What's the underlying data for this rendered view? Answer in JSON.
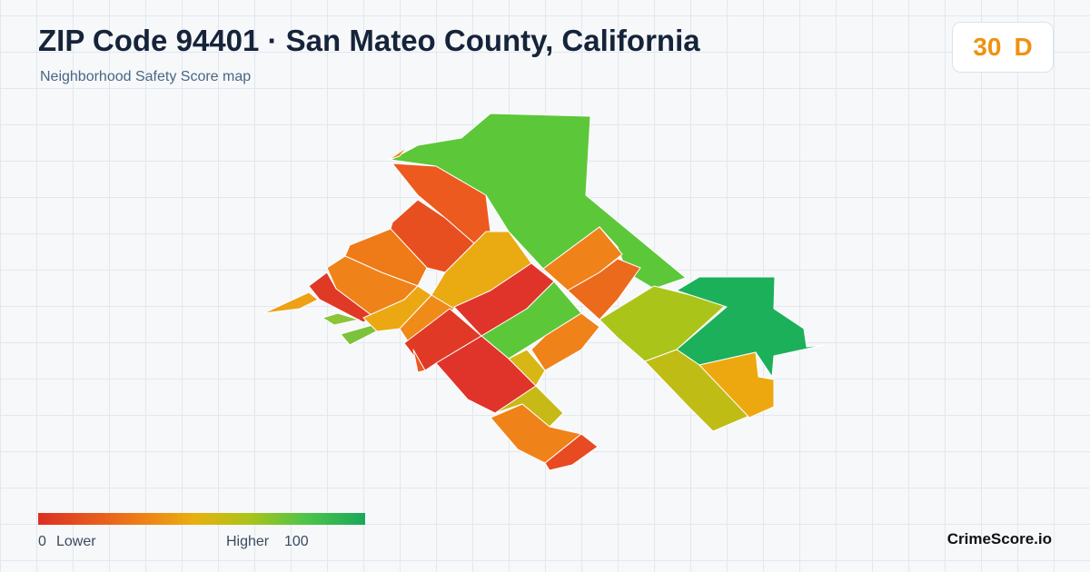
{
  "header": {
    "title": "ZIP Code 94401 · San Mateo County, California",
    "subtitle": "Neighborhood Safety Score map"
  },
  "badge": {
    "score": 30,
    "grade": "D"
  },
  "legend": {
    "min": 0,
    "low_label": "Lower",
    "high_label": "Higher",
    "max": 100
  },
  "footer": {
    "brand": "CrimeScore.io"
  }
}
